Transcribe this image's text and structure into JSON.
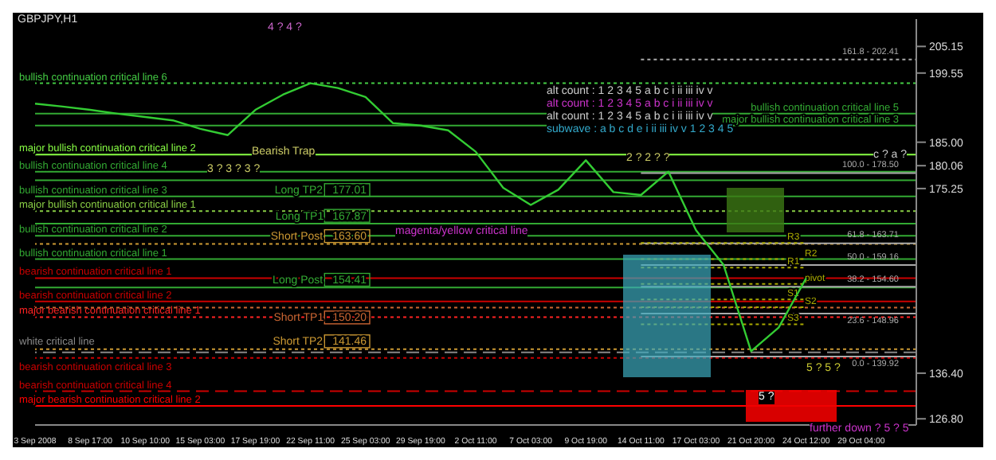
{
  "chart_data": {
    "type": "line",
    "title": "GBPJPY,H1",
    "categories": [
      "3 Sep 2008",
      null,
      "8 Sep 17:00",
      null,
      "10 Sep 10:00",
      null,
      "15 Sep 03:00",
      null,
      "17 Sep 19:00",
      null,
      "22 Sep 11:00",
      null,
      "25 Sep 03:00",
      null,
      "29 Sep 19:00",
      null,
      "2 Oct 11:00",
      null,
      "7 Oct 03:00",
      null,
      "9 Oct 19:00",
      null,
      "14 Oct 11:00",
      null,
      "17 Oct 03:00",
      null,
      "21 Oct 20:00",
      null,
      "24 Oct 12:00",
      null,
      "29 Oct 04:00",
      null,
      null
    ],
    "series": [
      {
        "color": "#33cc33",
        "values": [
          193.1,
          192.5,
          191.8,
          191.0,
          190.3,
          189.6,
          187.8,
          186.5,
          191.8,
          195.0,
          197.4,
          196.4,
          194.5,
          189.0,
          188.5,
          187.5,
          183.0,
          175.4,
          171.8,
          175.0,
          181.2,
          174.5,
          173.9,
          178.8,
          166.5,
          159.2,
          141.0,
          146.0,
          156.4,
          null,
          null,
          null,
          null
        ]
      }
    ],
    "ylim": [
      125.5,
      210.9
    ],
    "yticks": [
      205.15,
      199.55,
      {
        "value": 185,
        "label": "185.00"
      },
      180.06,
      175.25,
      {
        "value": 136.4,
        "label": "136.40"
      },
      {
        "value": 126.8,
        "label": "126.80"
      }
    ],
    "grid": false,
    "legend": false,
    "marker": "none",
    "line_style": "solid",
    "ref_lines": [
      {
        "axis": "y",
        "value": 197.4,
        "label": "bullish continuation critical line 6",
        "color": "#44cc44",
        "line_style": "dotted"
      },
      {
        "axis": "y",
        "value": 191.0,
        "label": "bullish continuation critical line 5",
        "color": "#33aa33",
        "line_style": "solid"
      },
      {
        "axis": "y",
        "value": 188.5,
        "label": "major bullish continuation critical line 3",
        "color": "#33aa33",
        "line_style": "solid"
      },
      {
        "axis": "y",
        "value": 182.4,
        "label": "major bullish continuation critical line 2",
        "color": "#88ff44",
        "line_style": "solid"
      },
      {
        "axis": "y",
        "value": 178.8,
        "label": "bullish continuation critical line 4",
        "color": "#33aa33",
        "line_style": "solid"
      },
      {
        "axis": "y",
        "value": 173.6,
        "label": "bullish continuation critical line 3",
        "color": "#33aa33",
        "line_style": "solid"
      },
      {
        "axis": "y",
        "value": 170.5,
        "label": "major bullish continuation critical line 1",
        "color": "#88cc44",
        "line_style": "dotted"
      },
      {
        "axis": "y",
        "value": 165.3,
        "label": "bullish continuation critical line 2",
        "color": "#33aa33",
        "line_style": "solid"
      },
      {
        "axis": "y",
        "value": 160.4,
        "label": "bullish continuation critical line 1",
        "color": "#33aa33",
        "line_style": "solid"
      },
      {
        "axis": "y",
        "value": 156.4,
        "label": "bearish continuation critical line 1",
        "color": "#cc0000",
        "line_style": "solid"
      },
      {
        "axis": "y",
        "value": 151.5,
        "label": "bearish continuation critical line 2",
        "color": "#cc0000",
        "line_style": "solid"
      },
      {
        "axis": "y",
        "value": 148.2,
        "label": "major bearish continuation critical line 1",
        "color": "#ff2222",
        "line_style": "dotted"
      },
      {
        "axis": "y",
        "value": 139.6,
        "label": "bearish continuation critical line 3",
        "color": "#cc0000",
        "line_style": "dotted"
      },
      {
        "axis": "y",
        "value": 140.8,
        "label": "white critical line",
        "color": "#888888",
        "line_style": "dashed"
      },
      {
        "axis": "y",
        "value": 132.6,
        "label": "bearish continuation critical line 4",
        "color": "#cc0000",
        "line_style": "dashed"
      },
      {
        "axis": "y",
        "value": 129.5,
        "label": "major bearish continuation critical line 2",
        "color": "#ff0000",
        "line_style": "solid"
      },
      {
        "axis": "y",
        "value": 177.01,
        "label": "Long TP2 177.01",
        "color": "#33aa33",
        "line_style": "solid"
      },
      {
        "axis": "y",
        "value": 167.87,
        "label": "Long TP1 167.87",
        "color": "#33aa33",
        "line_style": "solid"
      },
      {
        "axis": "y",
        "value": 163.6,
        "label": "Short Post 163.60",
        "color": "#cc9933",
        "line_style": "dotted"
      },
      {
        "axis": "y",
        "value": 154.41,
        "label": "Long Post 154.41",
        "color": "#33aa33",
        "line_style": "solid"
      },
      {
        "axis": "y",
        "value": 150.2,
        "label": "Short TP1 150.20",
        "color": "#cc6633",
        "line_style": "dotted"
      },
      {
        "axis": "y",
        "value": 141.46,
        "label": "Short TP2 141.46",
        "color": "#cc9933",
        "line_style": "dotted"
      },
      {
        "axis": "y",
        "value": 202.41,
        "color": "#aaaaaa",
        "line_style": "dotted"
      },
      {
        "axis": "y",
        "value": 178.5,
        "color": "#aaaaaa",
        "line_style": "solid"
      },
      {
        "axis": "y",
        "value": 163.71,
        "color": "#aaaaaa",
        "line_style": "solid"
      },
      {
        "axis": "y",
        "value": 159.16,
        "color": "#aaaaaa",
        "line_style": "solid"
      },
      {
        "axis": "y",
        "value": 154.6,
        "color": "#aaaaaa",
        "line_style": "solid"
      },
      {
        "axis": "y",
        "value": 148.96,
        "color": "#aaaaaa",
        "line_style": "solid"
      },
      {
        "axis": "y",
        "value": 139.92,
        "color": "#aaaaaa",
        "line_style": "solid"
      },
      {
        "axis": "y",
        "value": 163.8,
        "label": "R3",
        "color": "#aaaa00",
        "line_style": "dotted"
      },
      {
        "axis": "y",
        "value": 160.4,
        "label": "R2",
        "color": "#aaaa00",
        "line_style": "dotted"
      },
      {
        "axis": "y",
        "value": 158.6,
        "label": "R1",
        "color": "#aaaa00",
        "line_style": "dotted"
      },
      {
        "axis": "y",
        "value": 155.2,
        "label": "pivot",
        "color": "#aaaa00",
        "line_style": "dotted"
      },
      {
        "axis": "y",
        "value": 151.9,
        "label": "S1",
        "color": "#aaaa00",
        "line_style": "dotted"
      },
      {
        "axis": "y",
        "value": 150.3,
        "label": "S2",
        "color": "#aaaa00",
        "line_style": "dotted"
      },
      {
        "axis": "y",
        "value": 146.7,
        "label": "S3",
        "color": "#aaaa00",
        "line_style": "dotted"
      }
    ],
    "annotations": [
      "alt count : 1 2 3 4 5 a b c i ii iii iv v",
      "alt count : 1 2 3 4 5 a b c i ii iii iv v",
      "alt count : 1 2 3 4 5 a b c i ii iii iv v",
      "subwave : a b c d e i ii iii iv v 1 2 3 4 5",
      "4 ? 4 ?",
      "3 ? 3 ? 3 ?",
      "Bearish Trap",
      "magenta/yellow critical line",
      "2 ? 2 ? ?",
      "5 ?",
      "5 ? 5 ?",
      "further down ? 5 ? 5",
      "c ? a ?",
      {
        "text": "161.8 - 202.41",
        "y": 202.41
      },
      {
        "text": "100.0 - 178.50",
        "y": 178.5
      },
      {
        "text": "61.8 - 163.71",
        "y": 163.71
      },
      {
        "text": "50.0 - 159.16",
        "y": 159.16
      },
      {
        "text": "38.2 - 154.60",
        "y": 154.6
      },
      {
        "text": "23.6 - 148.96",
        "y": 148.96
      },
      {
        "text": "0.0 - 139.92",
        "y": 139.92
      }
    ]
  }
}
